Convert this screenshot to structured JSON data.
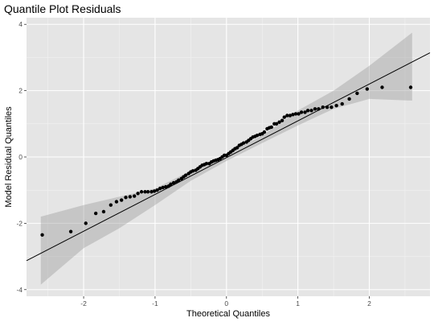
{
  "chart_data": {
    "type": "scatter",
    "title": "Quantile Plot Residuals",
    "xlabel": "Theoretical Quantiles",
    "ylabel": "Model Residual Quantiles",
    "xlim": [
      -2.8,
      2.85
    ],
    "ylim": [
      -4.2,
      4.2
    ],
    "x_ticks": [
      -2,
      -1,
      0,
      1,
      2
    ],
    "y_ticks": [
      -4,
      -2,
      0,
      2,
      4
    ],
    "x_tick_labels": [
      "-2",
      "-1",
      "0",
      "1",
      "2"
    ],
    "y_tick_labels": [
      "-4",
      "-2",
      "0",
      "2",
      "4"
    ],
    "grid": true,
    "reference_line": {
      "slope": 1.11,
      "intercept": -0.02
    },
    "confidence_band": {
      "x": [
        -2.6,
        -2.0,
        -1.5,
        -1.0,
        -0.5,
        0.0,
        0.5,
        1.0,
        1.5,
        2.0,
        2.6
      ],
      "lower": [
        -3.85,
        -2.75,
        -2.15,
        -1.45,
        -0.72,
        -0.12,
        0.42,
        0.95,
        1.45,
        1.75,
        1.7
      ],
      "upper": [
        -1.8,
        -1.45,
        -1.2,
        -0.95,
        -0.42,
        0.08,
        0.65,
        1.4,
        2.0,
        2.75,
        3.75
      ]
    },
    "points": {
      "x": [
        -2.58,
        -2.18,
        -1.97,
        -1.83,
        -1.72,
        -1.62,
        -1.54,
        -1.47,
        -1.41,
        -1.35,
        -1.29,
        -1.24,
        -1.19,
        -1.14,
        -1.1,
        -1.05,
        -1.01,
        -0.97,
        -0.93,
        -0.89,
        -0.85,
        -0.81,
        -0.78,
        -0.74,
        -0.7,
        -0.67,
        -0.63,
        -0.6,
        -0.57,
        -0.53,
        -0.5,
        -0.47,
        -0.43,
        -0.4,
        -0.37,
        -0.34,
        -0.31,
        -0.28,
        -0.24,
        -0.21,
        -0.18,
        -0.15,
        -0.12,
        -0.09,
        -0.06,
        -0.03,
        0.0,
        0.03,
        0.06,
        0.09,
        0.12,
        0.15,
        0.18,
        0.21,
        0.24,
        0.28,
        0.31,
        0.34,
        0.37,
        0.4,
        0.43,
        0.47,
        0.5,
        0.53,
        0.57,
        0.6,
        0.63,
        0.67,
        0.7,
        0.74,
        0.78,
        0.81,
        0.85,
        0.89,
        0.93,
        0.97,
        1.01,
        1.05,
        1.1,
        1.14,
        1.19,
        1.24,
        1.29,
        1.35,
        1.41,
        1.47,
        1.54,
        1.62,
        1.72,
        1.83,
        1.97,
        2.18,
        2.58
      ],
      "y": [
        -2.35,
        -2.25,
        -2.0,
        -1.7,
        -1.65,
        -1.45,
        -1.35,
        -1.3,
        -1.22,
        -1.2,
        -1.18,
        -1.1,
        -1.05,
        -1.05,
        -1.05,
        -1.05,
        -1.03,
        -1.0,
        -0.95,
        -0.92,
        -0.9,
        -0.88,
        -0.82,
        -0.78,
        -0.75,
        -0.7,
        -0.65,
        -0.6,
        -0.55,
        -0.5,
        -0.45,
        -0.42,
        -0.4,
        -0.35,
        -0.3,
        -0.25,
        -0.23,
        -0.2,
        -0.2,
        -0.15,
        -0.12,
        -0.1,
        -0.08,
        -0.05,
        0.0,
        0.05,
        0.05,
        0.1,
        0.15,
        0.2,
        0.25,
        0.28,
        0.35,
        0.38,
        0.42,
        0.45,
        0.5,
        0.55,
        0.6,
        0.62,
        0.65,
        0.68,
        0.7,
        0.75,
        0.85,
        0.88,
        0.9,
        1.0,
        1.0,
        1.05,
        1.1,
        1.2,
        1.25,
        1.25,
        1.28,
        1.3,
        1.3,
        1.35,
        1.35,
        1.4,
        1.4,
        1.45,
        1.45,
        1.5,
        1.5,
        1.5,
        1.55,
        1.6,
        1.75,
        1.92,
        2.05,
        2.1,
        2.1
      ]
    }
  }
}
